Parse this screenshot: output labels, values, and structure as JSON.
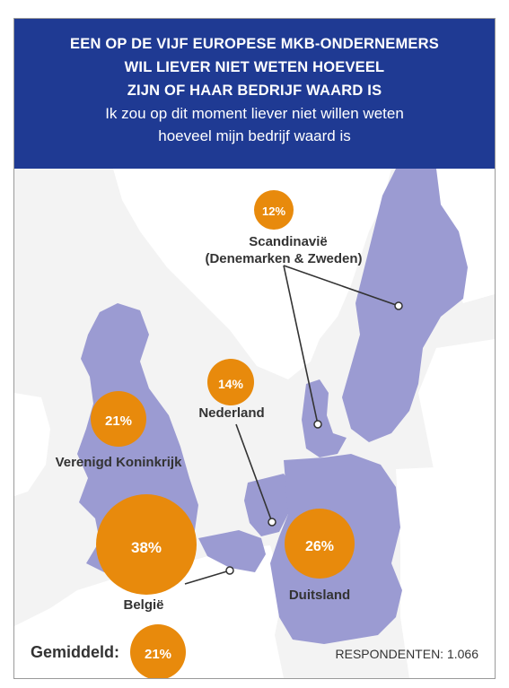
{
  "header": {
    "title_lines": [
      "EEN OP DE VIJF EUROPESE MKB-ONDERNEMERS",
      "WIL LIEVER NIET WETEN HOEVEEL",
      "ZIJN OF HAAR BEDRIJF WAARD IS"
    ],
    "subtitle_lines": [
      "Ik zou op dit moment liever niet willen weten",
      "hoeveel mijn bedrijf waard is"
    ]
  },
  "regions": {
    "scandinavia": {
      "name_line1": "Scandinavië",
      "name_line2": "(Denemarken & Zweden)",
      "value": "12%",
      "percent": 12
    },
    "netherlands": {
      "name": "Nederland",
      "value": "14%",
      "percent": 14
    },
    "uk": {
      "name": "Verenigd Koninkrijk",
      "value": "21%",
      "percent": 21
    },
    "belgium": {
      "name": "België",
      "value": "38%",
      "percent": 38
    },
    "germany": {
      "name": "Duitsland",
      "value": "26%",
      "percent": 26
    }
  },
  "average": {
    "label": "Gemiddeld:",
    "value": "21%",
    "percent": 21
  },
  "respondents": "RESPONDENTEN: 1.066",
  "colors": {
    "header_bg": "#1f3a93",
    "land_highlight": "#9b9bd2",
    "land_other": "#ffffff",
    "sea": "#f3f3f3",
    "bubble": "#e88a0c"
  }
}
